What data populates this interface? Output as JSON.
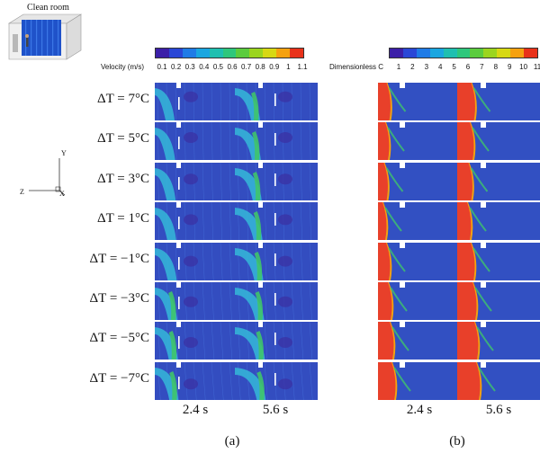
{
  "inset": {
    "label": "Clean room"
  },
  "axes": {
    "y": "Y",
    "z": "Z",
    "x": "X"
  },
  "rows": [
    "ΔT = 7°C",
    "ΔT = 5°C",
    "ΔT = 3°C",
    "ΔT = 1°C",
    "ΔT = −1°C",
    "ΔT = −3°C",
    "ΔT = −5°C",
    "ΔT = −7°C"
  ],
  "velocity_colorbar": {
    "title": "Velocity (m/s)",
    "ticks": [
      "0.1",
      "0.2",
      "0.3",
      "0.4",
      "0.5",
      "0.6",
      "0.7",
      "0.8",
      "0.9",
      "1",
      "1.1"
    ],
    "colors": [
      "#3b1fa8",
      "#2a47d6",
      "#1f7be6",
      "#1aa6e0",
      "#1fbfb0",
      "#2ec77c",
      "#5bcc3e",
      "#9bd51e",
      "#d7d813",
      "#f5a10f",
      "#e8321a"
    ]
  },
  "concentration_colorbar": {
    "title": "Dimensionless C",
    "ticks": [
      "1",
      "2",
      "3",
      "4",
      "5",
      "6",
      "7",
      "8",
      "9",
      "10",
      "11"
    ],
    "colors": [
      "#3b1fa8",
      "#2a47d6",
      "#1f7be6",
      "#1aa6e0",
      "#1fbfb0",
      "#2ec77c",
      "#5bcc3e",
      "#9bd51e",
      "#d7d813",
      "#f5a10f",
      "#e8321a"
    ]
  },
  "times": [
    "2.4 s",
    "5.6 s"
  ],
  "sublabels": [
    "(a)",
    "(b)"
  ],
  "colors": {
    "field_dark": "#3b2fa3",
    "field_mid": "#2f5fd0",
    "jet": "#35b8d8",
    "jet_green": "#3fc46a",
    "hot": "#e8402a",
    "white": "#ffffff"
  }
}
